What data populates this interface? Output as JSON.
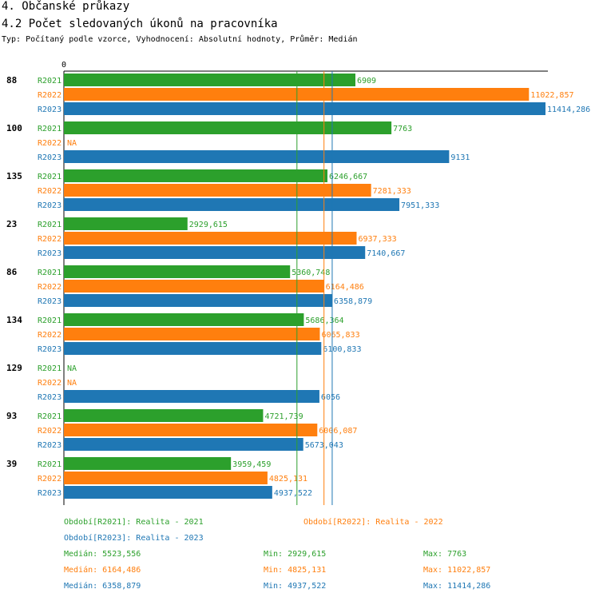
{
  "header": {
    "title": "4. Občanské průkazy",
    "subtitle": "4.2 Počet sledovaných úkonů na pracovníka",
    "description": "Typ: Počítaný podle vzorce, Vyhodnocení: Absolutní hodnoty, Průměr: Medián"
  },
  "colors": {
    "R2021": "#2ca02c",
    "R2022": "#ff7f0e",
    "R2023": "#1f77b4"
  },
  "chart_data": {
    "type": "bar",
    "orientation": "horizontal",
    "axis_zero_label": "0",
    "xlim": [
      0,
      11900
    ],
    "series_names": [
      "R2021",
      "R2022",
      "R2023"
    ],
    "groups": [
      {
        "label": "88",
        "bars": [
          {
            "series": "R2021",
            "value": 6909,
            "label": "6909"
          },
          {
            "series": "R2022",
            "value": 11022.857,
            "label": "11022,857"
          },
          {
            "series": "R2023",
            "value": 11414.286,
            "label": "11414,286"
          }
        ]
      },
      {
        "label": "100",
        "bars": [
          {
            "series": "R2021",
            "value": 7763,
            "label": "7763"
          },
          {
            "series": "R2022",
            "value": null,
            "label": "NA"
          },
          {
            "series": "R2023",
            "value": 9131,
            "label": "9131"
          }
        ]
      },
      {
        "label": "135",
        "bars": [
          {
            "series": "R2021",
            "value": 6246.667,
            "label": "6246,667"
          },
          {
            "series": "R2022",
            "value": 7281.333,
            "label": "7281,333"
          },
          {
            "series": "R2023",
            "value": 7951.333,
            "label": "7951,333"
          }
        ]
      },
      {
        "label": "23",
        "bars": [
          {
            "series": "R2021",
            "value": 2929.615,
            "label": "2929,615"
          },
          {
            "series": "R2022",
            "value": 6937.333,
            "label": "6937,333"
          },
          {
            "series": "R2023",
            "value": 7140.667,
            "label": "7140,667"
          }
        ]
      },
      {
        "label": "86",
        "bars": [
          {
            "series": "R2021",
            "value": 5360.748,
            "label": "5360,748"
          },
          {
            "series": "R2022",
            "value": 6164.486,
            "label": "6164,486"
          },
          {
            "series": "R2023",
            "value": 6358.879,
            "label": "6358,879"
          }
        ]
      },
      {
        "label": "134",
        "bars": [
          {
            "series": "R2021",
            "value": 5686.364,
            "label": "5686,364"
          },
          {
            "series": "R2022",
            "value": 6065.833,
            "label": "6065,833"
          },
          {
            "series": "R2023",
            "value": 6100.833,
            "label": "6100,833"
          }
        ]
      },
      {
        "label": "129",
        "bars": [
          {
            "series": "R2021",
            "value": null,
            "label": "NA"
          },
          {
            "series": "R2022",
            "value": null,
            "label": "NA"
          },
          {
            "series": "R2023",
            "value": 6056,
            "label": "6056"
          }
        ]
      },
      {
        "label": "93",
        "bars": [
          {
            "series": "R2021",
            "value": 4721.739,
            "label": "4721,739"
          },
          {
            "series": "R2022",
            "value": 6006.087,
            "label": "6006,087"
          },
          {
            "series": "R2023",
            "value": 5673.043,
            "label": "5673,043"
          }
        ]
      },
      {
        "label": "39",
        "bars": [
          {
            "series": "R2021",
            "value": 3959.459,
            "label": "3959,459"
          },
          {
            "series": "R2022",
            "value": 4825.131,
            "label": "4825,131"
          },
          {
            "series": "R2023",
            "value": 4937.522,
            "label": "4937,522"
          }
        ]
      }
    ],
    "median_lines": [
      {
        "series": "R2021",
        "value": 5523.556
      },
      {
        "series": "R2022",
        "value": 6164.486
      },
      {
        "series": "R2023",
        "value": 6358.879
      }
    ]
  },
  "legend": {
    "r2021": "Období[R2021]: Realita - 2021",
    "r2022": "Období[R2022]: Realita - 2022",
    "r2023": "Období[R2023]: Realita - 2023"
  },
  "stats": {
    "r2021": {
      "median": "Medián: 5523,556",
      "min": "Min: 2929,615",
      "max": "Max: 7763"
    },
    "r2022": {
      "median": "Medián: 6164,486",
      "min": "Min: 4825,131",
      "max": "Max: 11022,857"
    },
    "r2023": {
      "median": "Medián: 6358,879",
      "min": "Min: 4937,522",
      "max": "Max: 11414,286"
    }
  }
}
